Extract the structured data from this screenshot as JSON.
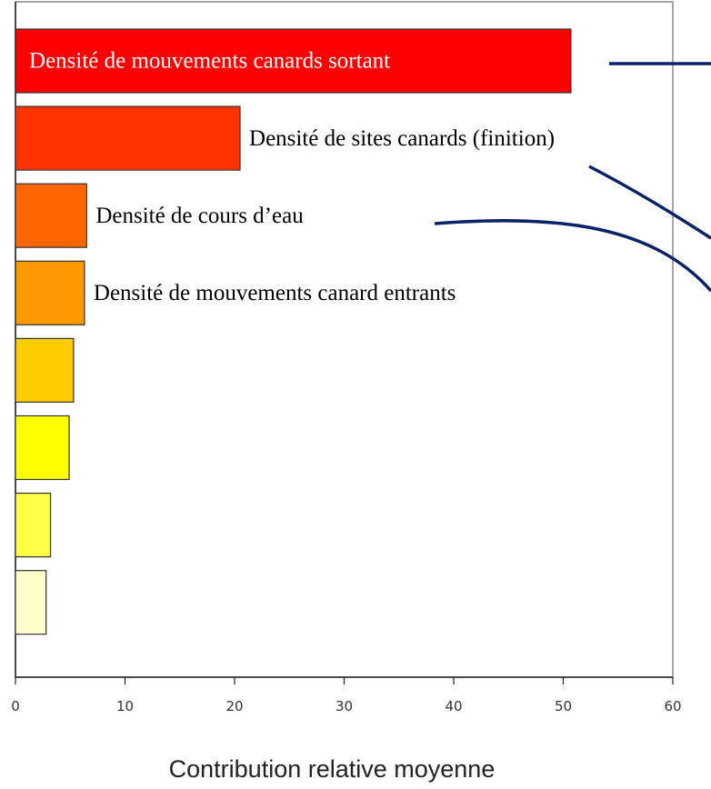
{
  "chart_data": {
    "type": "bar",
    "orientation": "horizontal",
    "categories": [
      "Densité de mouvements canards sortant",
      "Densité de sites canards (finition)",
      "Densité de cours d’eau",
      "Densité de mouvements canard entrants",
      null,
      null,
      null,
      null
    ],
    "values": [
      50.7,
      20.5,
      6.5,
      6.3,
      5.3,
      4.9,
      3.2,
      2.8
    ],
    "colors": [
      "#ff0000",
      "#ff3300",
      "#ff6600",
      "#ff9900",
      "#ffcc00",
      "#ffff00",
      "#ffff44",
      "#ffffcc"
    ],
    "xlim": [
      0,
      60
    ],
    "xticks": [
      0,
      10,
      20,
      30,
      40,
      50,
      60
    ],
    "x_label": "Contribution relative moyenne"
  }
}
